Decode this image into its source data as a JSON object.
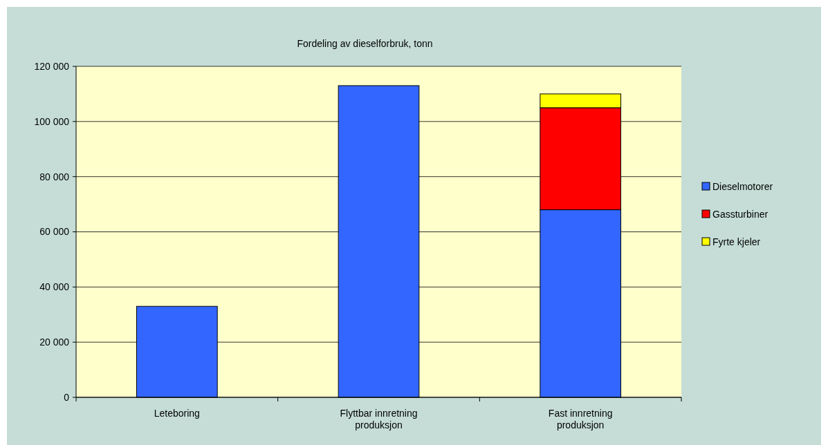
{
  "chart_data": {
    "type": "bar",
    "title": "Fordeling av dieselforbruk, tonn",
    "categories": [
      "Leteboring",
      "Flyttbar innretning produksjon",
      "Fast innretning produksjon"
    ],
    "stacked": true,
    "series": [
      {
        "name": "Dieselmotorer",
        "color": "#3366ff",
        "values": [
          33000,
          113000,
          68000
        ]
      },
      {
        "name": "Gassturbiner",
        "color": "#ff0000",
        "values": [
          0,
          0,
          37000
        ]
      },
      {
        "name": "Fyrte kjeler",
        "color": "#ffff00",
        "values": [
          0,
          0,
          5000
        ]
      }
    ],
    "ylim": [
      0,
      120000
    ],
    "yticks": [
      {
        "value": 0,
        "label": "0"
      },
      {
        "value": 20000,
        "label": "20 000"
      },
      {
        "value": 40000,
        "label": "40 000"
      },
      {
        "value": 60000,
        "label": "60 000"
      },
      {
        "value": 80000,
        "label": "80 000"
      },
      {
        "value": 100000,
        "label": "100 000"
      },
      {
        "value": 120000,
        "label": "120 000"
      }
    ],
    "grid": "y",
    "legend": "right"
  }
}
